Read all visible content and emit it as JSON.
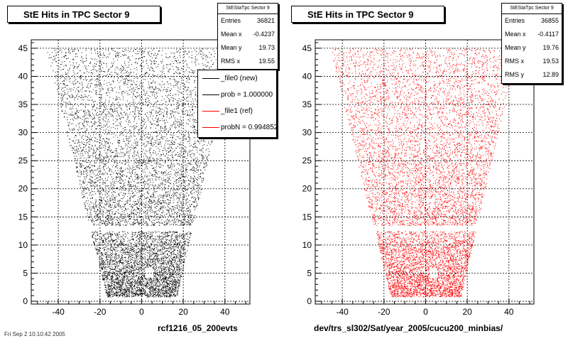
{
  "colors": {
    "black_series": "#000000",
    "red_series": "#ff0000",
    "frame": "#000000",
    "grid": "#000000"
  },
  "left_panel": {
    "title": "StE Hits in TPC Sector 9",
    "stats": {
      "name": "StEStaTpc Sector 9",
      "entries_label": "Entries",
      "entries": "36821",
      "mean_x_label": "Mean x",
      "mean_x": "-0.4237",
      "mean_y_label": "Mean y",
      "mean_y": "19.73",
      "rms_x_label": "RMS x",
      "rms_x": "19.55"
    },
    "legend": [
      {
        "label": "_file0 (new)",
        "color": "#000000"
      },
      {
        "label": "prob = 1.000000",
        "color": "#000000"
      },
      {
        "label": "_file1 (ref)",
        "color": "#ff0000"
      },
      {
        "label": "probN = 0.994852",
        "color": "#ff0000"
      }
    ],
    "xlabel": "rcf1216_05_200evts"
  },
  "right_panel": {
    "title": "StE Hits in TPC Sector 9",
    "stats": {
      "name": "StEStaTpc Sector 9",
      "entries_label": "Entries",
      "entries": "36855",
      "mean_x_label": "Mean x",
      "mean_x": "-0.4117",
      "mean_y_label": "Mean y",
      "mean_y": "19.76",
      "rms_x_label": "RMS x",
      "rms_x": "19.53",
      "rms_y_label": "RMS y",
      "rms_y": "12.89"
    },
    "xlabel": "dev/trs_sl302/Sat/year_2005/cucu200_minbias/"
  },
  "footer": "Fri Sep 2 10:10:42 2005",
  "chart_data": [
    {
      "type": "scatter",
      "title": "StE Hits in TPC Sector 9",
      "series": [
        {
          "name": "_file0 (new)",
          "color": "#000000",
          "entries": 36821
        }
      ],
      "xlabel": "rcf1216_05_200evts",
      "xlim": [
        -53,
        52
      ],
      "ylim": [
        -0.5,
        46.5
      ],
      "xticks": [
        -40,
        -20,
        0,
        20,
        40
      ],
      "yticks": [
        0,
        5,
        10,
        15,
        20,
        25,
        30,
        35,
        40,
        45
      ],
      "grid": true,
      "legend_placement": "top-right",
      "shape": {
        "y_max": 45,
        "top_x": [
          -46,
          44
        ],
        "bottom_x": [
          -17,
          17
        ],
        "gap_y": [
          13.5,
          12.5
        ]
      }
    },
    {
      "type": "scatter",
      "title": "StE Hits in TPC Sector 9",
      "series": [
        {
          "name": "_file1 (ref)",
          "color": "#ff0000",
          "entries": 36855
        }
      ],
      "xlabel": "dev/trs_sl302/Sat/year_2005/cucu200_minbias/",
      "xlim": [
        -53,
        52
      ],
      "ylim": [
        -0.5,
        46.5
      ],
      "xticks": [
        -40,
        -20,
        0,
        20,
        40
      ],
      "yticks": [
        0,
        5,
        10,
        15,
        20,
        25,
        30,
        35,
        40,
        45
      ],
      "grid": true,
      "shape": {
        "y_max": 45,
        "top_x": [
          -46,
          44
        ],
        "bottom_x": [
          -17,
          17
        ],
        "gap_y": [
          13.5,
          12.5
        ]
      }
    }
  ]
}
